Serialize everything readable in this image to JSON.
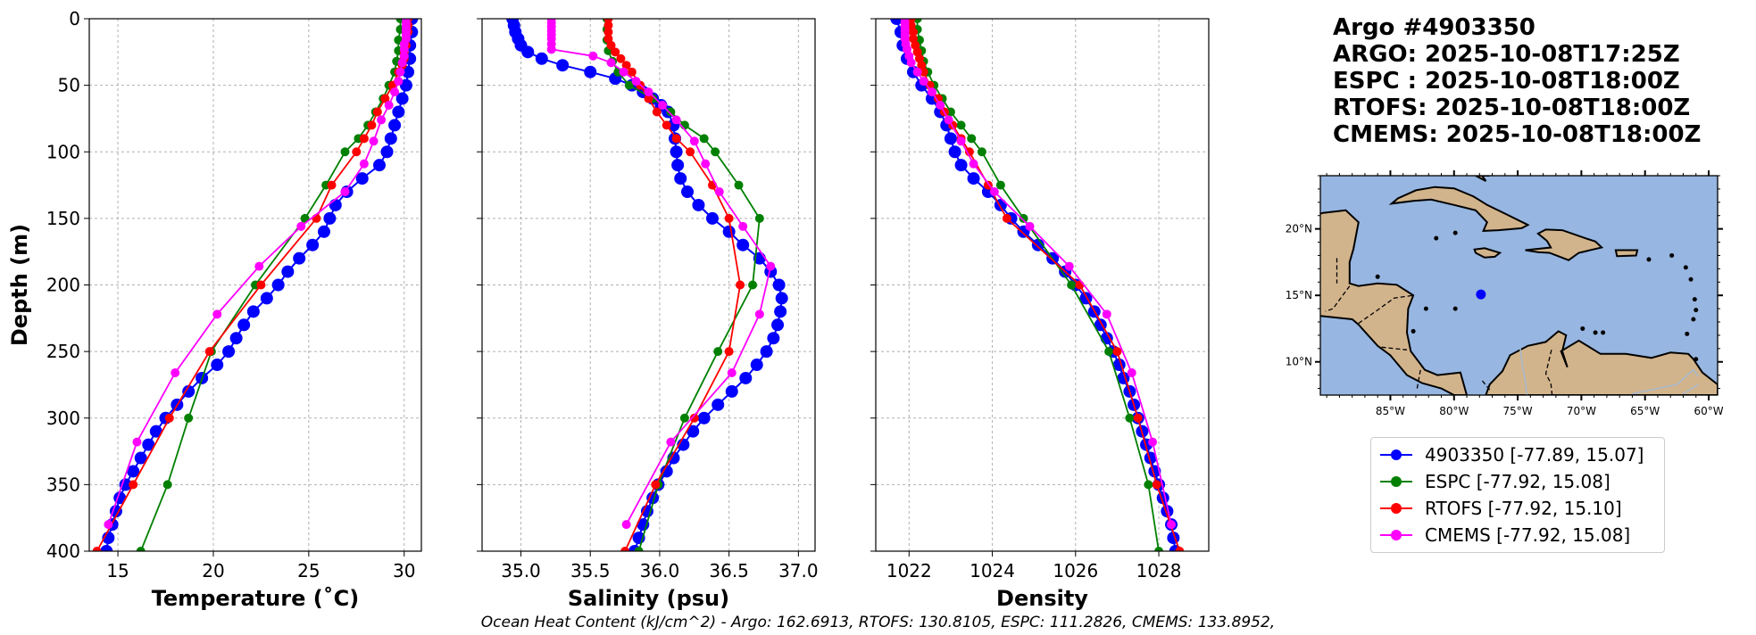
{
  "title_lines": [
    "Argo #4903350",
    "ARGO: 2025-10-08T17:25Z",
    "ESPC : 2025-10-08T18:00Z",
    "RTOFS: 2025-10-08T18:00Z",
    "CMEMS: 2025-10-08T18:00Z"
  ],
  "footer": "Ocean Heat Content (kJ/cm^2) - Argo: 162.6913,  RTOFS: 130.8105,  ESPC: 111.2826,  CMEMS: 133.8952,",
  "legend": [
    {
      "label": "4903350 [-77.89, 15.07]",
      "color": "#0000ff"
    },
    {
      "label": "ESPC [-77.92, 15.08]",
      "color": "#008000"
    },
    {
      "label": "RTOFS [-77.92, 15.10]",
      "color": "#ff0000"
    },
    {
      "label": "CMEMS [-77.92, 15.08]",
      "color": "#ff00ff"
    }
  ],
  "chart_data": [
    {
      "type": "line",
      "xlabel": "Temperature (˚C)",
      "ylabel": "Depth (m)",
      "xlim": [
        13.5,
        30.9
      ],
      "ylim": [
        400,
        0
      ],
      "xticks": [
        15,
        20,
        25,
        30
      ],
      "yticks": [
        0,
        50,
        100,
        150,
        200,
        250,
        300,
        350,
        400
      ],
      "grid": true,
      "series": [
        {
          "name": "4903350",
          "color": "#0000ff",
          "depth": [
            0,
            10,
            20,
            30,
            40,
            50,
            60,
            70,
            80,
            90,
            100,
            110,
            120,
            130,
            140,
            150,
            160,
            170,
            180,
            190,
            200,
            210,
            220,
            230,
            240,
            250,
            260,
            270,
            280,
            290,
            300,
            310,
            320,
            330,
            340,
            350,
            360,
            370,
            380,
            390,
            400
          ],
          "values": [
            30.4,
            30.4,
            30.3,
            30.3,
            30.2,
            30.1,
            29.9,
            29.7,
            29.5,
            29.3,
            29.1,
            28.7,
            27.8,
            27.0,
            26.4,
            26.1,
            25.8,
            25.2,
            24.5,
            23.9,
            23.4,
            22.8,
            22.1,
            21.6,
            21.2,
            20.8,
            20.2,
            19.4,
            18.7,
            18.1,
            17.5,
            17.0,
            16.6,
            16.2,
            15.8,
            15.4,
            15.1,
            14.9,
            14.7,
            14.5,
            14.4
          ]
        },
        {
          "name": "ESPC",
          "color": "#008000",
          "depth": [
            0,
            8,
            16,
            24,
            32,
            40,
            50,
            60,
            70,
            80,
            90,
            100,
            125,
            150,
            200,
            250,
            300,
            350,
            400
          ],
          "values": [
            29.8,
            29.8,
            29.7,
            29.7,
            29.6,
            29.5,
            29.2,
            28.9,
            28.5,
            28.1,
            27.6,
            26.9,
            25.9,
            24.8,
            22.2,
            19.9,
            18.7,
            17.6,
            16.2
          ]
        },
        {
          "name": "RTOFS",
          "color": "#ff0000",
          "depth": [
            0,
            5,
            10,
            15,
            20,
            25,
            30,
            35,
            40,
            50,
            60,
            70,
            80,
            90,
            100,
            125,
            150,
            200,
            250,
            300,
            350,
            400
          ],
          "values": [
            30.2,
            30.2,
            30.2,
            30.1,
            30.1,
            30.0,
            30.0,
            29.9,
            29.7,
            29.4,
            29.0,
            28.6,
            28.3,
            27.9,
            27.5,
            26.2,
            25.4,
            22.5,
            19.8,
            17.7,
            15.8,
            13.9
          ]
        },
        {
          "name": "CMEMS",
          "color": "#ff00ff",
          "depth": [
            0,
            3,
            6,
            9,
            12,
            15,
            19,
            23,
            28,
            33,
            40,
            47,
            55,
            65,
            76,
            92,
            109,
            130,
            156,
            186,
            222,
            266,
            318,
            380
          ],
          "values": [
            30.1,
            30.1,
            30.1,
            30.1,
            30.1,
            30.1,
            30.0,
            30.0,
            30.0,
            29.9,
            29.8,
            29.7,
            29.5,
            29.2,
            28.8,
            28.4,
            27.9,
            26.9,
            24.6,
            22.4,
            20.2,
            18.0,
            16.0,
            14.5
          ]
        }
      ]
    },
    {
      "type": "line",
      "xlabel": "Salinity (psu)",
      "ylabel": "",
      "xlim": [
        34.72,
        37.12
      ],
      "ylim": [
        400,
        0
      ],
      "xticks": [
        35.0,
        35.5,
        36.0,
        36.5,
        37.0
      ],
      "yticks": [
        0,
        50,
        100,
        150,
        200,
        250,
        300,
        350,
        400
      ],
      "grid": true,
      "series": [
        {
          "name": "4903350",
          "color": "#0000ff",
          "depth": [
            0,
            5,
            10,
            15,
            20,
            25,
            30,
            35,
            40,
            45,
            50,
            55,
            60,
            65,
            70,
            80,
            90,
            100,
            110,
            120,
            130,
            140,
            150,
            160,
            170,
            180,
            190,
            200,
            210,
            220,
            230,
            240,
            250,
            260,
            270,
            280,
            290,
            300,
            310,
            320,
            330,
            340,
            350,
            360,
            370,
            380,
            390,
            400
          ],
          "values": [
            34.94,
            34.95,
            34.96,
            34.98,
            35.0,
            35.05,
            35.15,
            35.3,
            35.5,
            35.68,
            35.8,
            35.88,
            35.95,
            36.01,
            36.06,
            36.1,
            36.11,
            36.12,
            36.13,
            36.15,
            36.2,
            36.28,
            36.38,
            36.5,
            36.6,
            36.72,
            36.8,
            36.86,
            36.88,
            36.87,
            36.85,
            36.82,
            36.77,
            36.7,
            36.62,
            36.52,
            36.42,
            36.32,
            36.24,
            36.17,
            36.1,
            36.05,
            35.99,
            35.95,
            35.91,
            35.88,
            35.85,
            35.82
          ]
        },
        {
          "name": "ESPC",
          "color": "#008000",
          "depth": [
            0,
            8,
            16,
            24,
            32,
            40,
            50,
            60,
            70,
            80,
            90,
            100,
            125,
            150,
            200,
            250,
            300,
            350,
            400
          ],
          "values": [
            35.62,
            35.62,
            35.62,
            35.63,
            35.66,
            35.7,
            35.78,
            35.95,
            36.08,
            36.18,
            36.32,
            36.4,
            36.57,
            36.72,
            36.67,
            36.42,
            36.18,
            35.99,
            35.85
          ]
        },
        {
          "name": "RTOFS",
          "color": "#ff0000",
          "depth": [
            0,
            5,
            10,
            15,
            20,
            25,
            30,
            35,
            40,
            50,
            60,
            70,
            80,
            90,
            100,
            125,
            150,
            200,
            250,
            300,
            350,
            400
          ],
          "values": [
            35.63,
            35.63,
            35.63,
            35.63,
            35.65,
            35.68,
            35.72,
            35.76,
            35.8,
            35.86,
            35.92,
            35.98,
            36.05,
            36.12,
            36.22,
            36.38,
            36.5,
            36.58,
            36.5,
            36.25,
            35.97,
            35.75
          ]
        },
        {
          "name": "CMEMS",
          "color": "#ff00ff",
          "depth": [
            0,
            3,
            6,
            9,
            12,
            15,
            19,
            23,
            28,
            33,
            40,
            47,
            55,
            65,
            76,
            92,
            109,
            130,
            156,
            186,
            222,
            266,
            318,
            380
          ],
          "values": [
            35.22,
            35.22,
            35.22,
            35.22,
            35.22,
            35.22,
            35.22,
            35.22,
            35.52,
            35.65,
            35.74,
            35.83,
            35.92,
            36.02,
            36.12,
            36.25,
            36.33,
            36.43,
            36.6,
            36.8,
            36.72,
            36.52,
            36.08,
            35.76
          ]
        }
      ]
    },
    {
      "type": "line",
      "xlabel": "Density",
      "ylabel": "",
      "xlim": [
        1021.2,
        1029.2
      ],
      "ylim": [
        400,
        0
      ],
      "xticks": [
        1022,
        1024,
        1026,
        1028
      ],
      "yticks": [
        0,
        50,
        100,
        150,
        200,
        250,
        300,
        350,
        400
      ],
      "grid": true,
      "series": [
        {
          "name": "4903350",
          "color": "#0000ff",
          "depth": [
            0,
            10,
            20,
            30,
            40,
            50,
            60,
            70,
            80,
            90,
            100,
            110,
            120,
            130,
            140,
            150,
            160,
            170,
            180,
            190,
            200,
            210,
            220,
            230,
            240,
            250,
            260,
            270,
            280,
            290,
            300,
            310,
            320,
            330,
            340,
            350,
            360,
            370,
            380,
            390,
            400
          ],
          "values": [
            1021.7,
            1021.8,
            1021.85,
            1021.95,
            1022.1,
            1022.3,
            1022.55,
            1022.75,
            1022.9,
            1023.0,
            1023.1,
            1023.25,
            1023.55,
            1023.9,
            1024.2,
            1024.45,
            1024.75,
            1025.1,
            1025.45,
            1025.75,
            1026.0,
            1026.25,
            1026.45,
            1026.6,
            1026.75,
            1026.9,
            1027.05,
            1027.15,
            1027.3,
            1027.4,
            1027.5,
            1027.6,
            1027.7,
            1027.8,
            1027.9,
            1028.0,
            1028.1,
            1028.2,
            1028.3,
            1028.35,
            1028.4
          ]
        },
        {
          "name": "ESPC",
          "color": "#008000",
          "depth": [
            0,
            8,
            16,
            24,
            32,
            40,
            50,
            60,
            70,
            80,
            90,
            100,
            125,
            150,
            200,
            250,
            300,
            350,
            400
          ],
          "values": [
            1022.2,
            1022.2,
            1022.25,
            1022.3,
            1022.35,
            1022.45,
            1022.6,
            1022.8,
            1023.0,
            1023.25,
            1023.5,
            1023.75,
            1024.2,
            1024.75,
            1025.9,
            1026.8,
            1027.3,
            1027.75,
            1028.0
          ]
        },
        {
          "name": "RTOFS",
          "color": "#ff0000",
          "depth": [
            0,
            5,
            10,
            15,
            20,
            25,
            30,
            35,
            40,
            50,
            60,
            70,
            80,
            90,
            100,
            125,
            150,
            200,
            250,
            300,
            350,
            400
          ],
          "values": [
            1022.05,
            1022.05,
            1022.1,
            1022.1,
            1022.15,
            1022.2,
            1022.25,
            1022.3,
            1022.35,
            1022.5,
            1022.7,
            1022.85,
            1023.05,
            1023.25,
            1023.45,
            1023.9,
            1024.35,
            1026.1,
            1027.0,
            1027.5,
            1027.95,
            1028.5
          ]
        },
        {
          "name": "CMEMS",
          "color": "#ff00ff",
          "depth": [
            0,
            3,
            6,
            9,
            12,
            15,
            19,
            23,
            28,
            33,
            40,
            47,
            55,
            65,
            76,
            92,
            109,
            130,
            156,
            186,
            222,
            266,
            318,
            380
          ],
          "values": [
            1021.9,
            1021.9,
            1021.9,
            1021.9,
            1021.9,
            1021.9,
            1021.92,
            1021.95,
            1022.0,
            1022.05,
            1022.2,
            1022.35,
            1022.55,
            1022.75,
            1022.95,
            1023.25,
            1023.55,
            1024.05,
            1024.9,
            1025.85,
            1026.75,
            1027.35,
            1027.85,
            1028.3
          ]
        }
      ]
    },
    {
      "type": "map",
      "xticks": [
        "85°W",
        "80°W",
        "75°W",
        "70°W",
        "65°W",
        "60°W"
      ],
      "yticks": [
        "20°N",
        "15°N",
        "10°N"
      ],
      "lon_range": [
        -90.5,
        -59.3
      ],
      "lat_range": [
        7.5,
        24.0
      ],
      "marker": {
        "lon": -77.89,
        "lat": 15.07,
        "color": "#0000ff"
      }
    }
  ]
}
